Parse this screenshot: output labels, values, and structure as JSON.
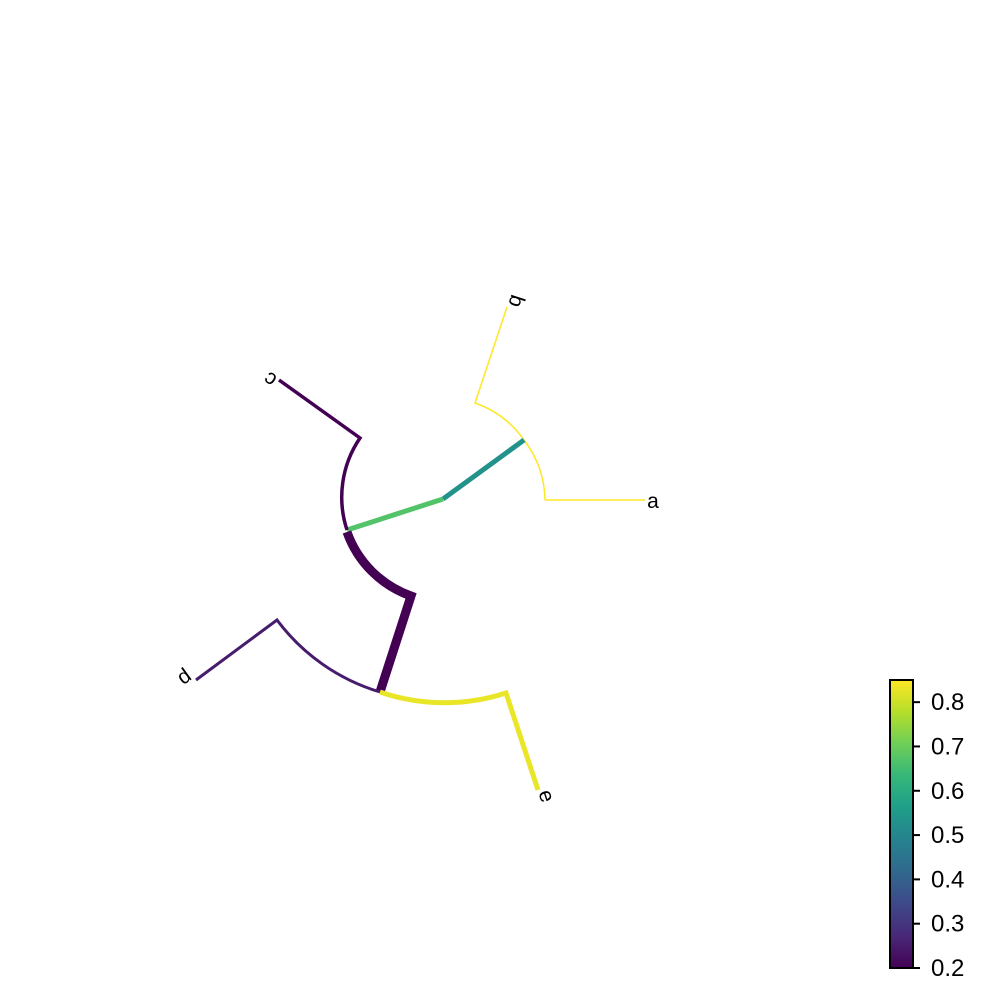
{
  "tree": {
    "layout": "circular",
    "color_variable_range": [
      0.2,
      0.85
    ],
    "tips": [
      "a",
      "b",
      "c",
      "d",
      "e"
    ],
    "branches": [
      {
        "id": "tip-a",
        "label": "a",
        "value": 0.85
      },
      {
        "id": "tip-b",
        "label": "b",
        "value": 0.85
      },
      {
        "id": "clade-ab",
        "label": "",
        "value": 0.53
      },
      {
        "id": "clade-abc",
        "label": "",
        "value": 0.67
      },
      {
        "id": "tip-c",
        "label": "c",
        "value": 0.2
      },
      {
        "id": "clade-abc-stem",
        "label": "",
        "value": 0.2
      },
      {
        "id": "tip-d",
        "label": "d",
        "value": 0.25
      },
      {
        "id": "tip-e",
        "label": "e",
        "value": 0.83
      }
    ]
  },
  "colorbar": {
    "min": 0.2,
    "max": 0.85,
    "ticks": [
      "0.2",
      "0.3",
      "0.4",
      "0.5",
      "0.6",
      "0.7",
      "0.8"
    ],
    "colormap": "viridis",
    "stops": [
      "#440154",
      "#482878",
      "#3e4989",
      "#31688e",
      "#26828e",
      "#1f9e89",
      "#35b779",
      "#6ece58",
      "#b5de2b",
      "#fde725"
    ]
  }
}
